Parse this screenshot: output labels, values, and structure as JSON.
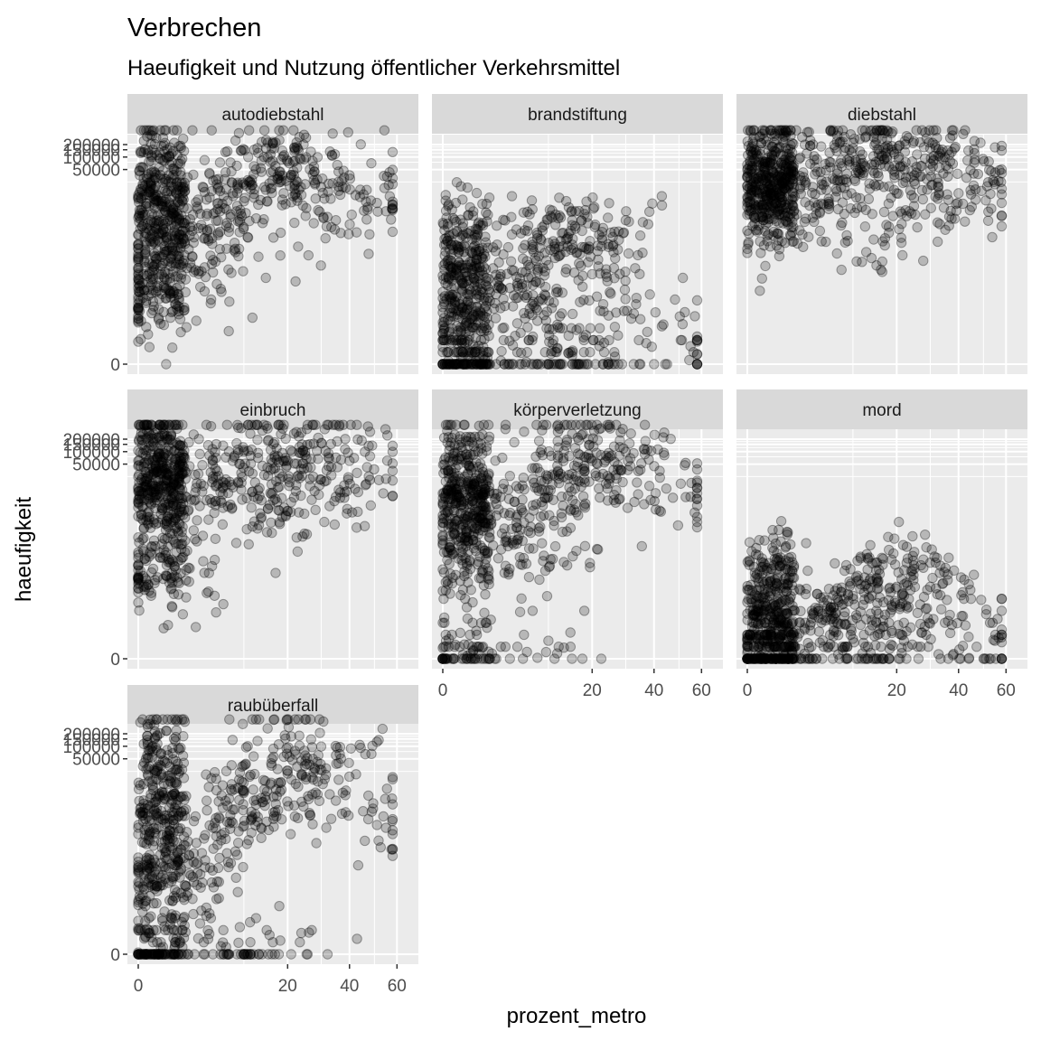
{
  "chart_data": {
    "type": "scatter",
    "title": "Verbrechen",
    "subtitle": "Haeufigkeit und Nutzung öffentlicher Verkehrsmittel",
    "xlabel": "prozent_metro",
    "ylabel": "haeufigkeit",
    "x_scale": "sqrt",
    "y_scale": "log1p",
    "xlim": [
      0,
      65
    ],
    "ylim": [
      0,
      200000
    ],
    "x_ticks": [
      0,
      20,
      40,
      60
    ],
    "x_tick_labels": [
      "0",
      "20",
      "40",
      "60"
    ],
    "y_ticks": [
      0,
      50000,
      100000,
      150000,
      200000
    ],
    "y_tick_labels": [
      "0",
      "50000",
      "100000",
      "150000",
      "200000"
    ],
    "point_color": "#000000",
    "point_alpha": 0.22,
    "grid": true,
    "panel_background": "#ebebeb",
    "strip_background": "#d9d9d9",
    "facets": [
      {
        "name": "autodiebstahl",
        "n_points": 900,
        "points": [
          [
            0.5,
            5
          ],
          [
            0.1,
            5
          ],
          [
            0.3,
            7.5
          ],
          [
            1,
            6
          ],
          [
            2,
            8
          ],
          [
            3,
            9
          ],
          [
            4,
            7
          ],
          [
            6,
            8.5
          ],
          [
            8,
            9.5
          ],
          [
            10,
            10
          ],
          [
            12,
            11
          ],
          [
            15,
            11.5
          ],
          [
            18,
            10.5
          ],
          [
            22,
            11.3
          ],
          [
            28,
            10
          ],
          [
            35,
            8
          ],
          [
            40,
            10.5
          ],
          [
            55,
            8.5
          ],
          [
            16,
            12
          ],
          [
            21,
            9
          ],
          [
            9,
            6
          ],
          [
            2,
            4
          ],
          [
            0.2,
            3
          ]
        ]
      },
      {
        "name": "brandstiftung",
        "n_points": 900,
        "points": [
          [
            0.5,
            3
          ],
          [
            1,
            2
          ],
          [
            2,
            4
          ],
          [
            3,
            5
          ],
          [
            5,
            4.5
          ],
          [
            8,
            3
          ],
          [
            10,
            5.5
          ],
          [
            12,
            6
          ],
          [
            15,
            8
          ],
          [
            18,
            6.5
          ],
          [
            20,
            5
          ],
          [
            25,
            4
          ],
          [
            30,
            8
          ],
          [
            35,
            2.5
          ],
          [
            55,
            1
          ],
          [
            0,
            0
          ],
          [
            4,
            0
          ],
          [
            10,
            0
          ],
          [
            15,
            0
          ],
          [
            22,
            1
          ],
          [
            8,
            7
          ],
          [
            13,
            7.3
          ]
        ]
      },
      {
        "name": "diebstahl",
        "n_points": 900,
        "points": [
          [
            0.5,
            9.5
          ],
          [
            1,
            10
          ],
          [
            2,
            10.5
          ],
          [
            3,
            9
          ],
          [
            5,
            10
          ],
          [
            8,
            11
          ],
          [
            10,
            12
          ],
          [
            12,
            10.5
          ],
          [
            15,
            12.5
          ],
          [
            18,
            11
          ],
          [
            20,
            9.5
          ],
          [
            25,
            10.5
          ],
          [
            30,
            12
          ],
          [
            35,
            11.5
          ],
          [
            40,
            9.5
          ],
          [
            55,
            10
          ],
          [
            17,
            7
          ],
          [
            1.5,
            8.2
          ],
          [
            7,
            9.3
          ]
        ]
      },
      {
        "name": "einbruch",
        "n_points": 900,
        "points": [
          [
            0.5,
            9
          ],
          [
            1,
            8
          ],
          [
            2,
            10
          ],
          [
            3,
            9.5
          ],
          [
            5,
            10
          ],
          [
            8,
            11
          ],
          [
            10,
            11.5
          ],
          [
            12,
            9
          ],
          [
            15,
            12.8
          ],
          [
            18,
            10
          ],
          [
            20,
            11
          ],
          [
            25,
            11.5
          ],
          [
            30,
            12
          ],
          [
            35,
            9
          ],
          [
            40,
            11
          ],
          [
            55,
            10
          ],
          [
            16,
            7
          ],
          [
            0.2,
            5
          ],
          [
            1,
            4.5
          ]
        ]
      },
      {
        "name": "körperverletzung",
        "n_points": 900,
        "points": [
          [
            0.5,
            7
          ],
          [
            1,
            6.5
          ],
          [
            2,
            8
          ],
          [
            3,
            9
          ],
          [
            5,
            8
          ],
          [
            8,
            9.5
          ],
          [
            10,
            9
          ],
          [
            12,
            10
          ],
          [
            15,
            12.5
          ],
          [
            18,
            10
          ],
          [
            20,
            11
          ],
          [
            25,
            10
          ],
          [
            30,
            11.5
          ],
          [
            35,
            10.5
          ],
          [
            55,
            9
          ],
          [
            10,
            1
          ],
          [
            0.5,
            0
          ],
          [
            4,
            5
          ],
          [
            16,
            6
          ]
        ]
      },
      {
        "name": "mord",
        "n_points": 900,
        "points": [
          [
            0.5,
            0
          ],
          [
            1,
            1
          ],
          [
            2,
            1.5
          ],
          [
            3,
            2
          ],
          [
            5,
            2.5
          ],
          [
            8,
            3
          ],
          [
            10,
            3.5
          ],
          [
            12,
            3
          ],
          [
            15,
            4.5
          ],
          [
            18,
            2
          ],
          [
            20,
            4
          ],
          [
            25,
            5
          ],
          [
            30,
            4
          ],
          [
            35,
            2
          ],
          [
            55,
            1
          ],
          [
            0,
            0.7
          ],
          [
            9,
            0
          ],
          [
            18,
            0
          ],
          [
            22,
            1
          ],
          [
            14,
            5.3
          ]
        ]
      },
      {
        "name": "raubüberfall",
        "n_points": 900,
        "points": [
          [
            0.5,
            4
          ],
          [
            1,
            5
          ],
          [
            2,
            6
          ],
          [
            3,
            5
          ],
          [
            5,
            7
          ],
          [
            8,
            8
          ],
          [
            10,
            9
          ],
          [
            12,
            8.5
          ],
          [
            15,
            12.5
          ],
          [
            18,
            9
          ],
          [
            20,
            10
          ],
          [
            25,
            11
          ],
          [
            30,
            11.5
          ],
          [
            35,
            8.5
          ],
          [
            55,
            7
          ],
          [
            0,
            0
          ],
          [
            5,
            0
          ],
          [
            10,
            0
          ],
          [
            16,
            0
          ],
          [
            1,
            2
          ]
        ]
      }
    ]
  }
}
